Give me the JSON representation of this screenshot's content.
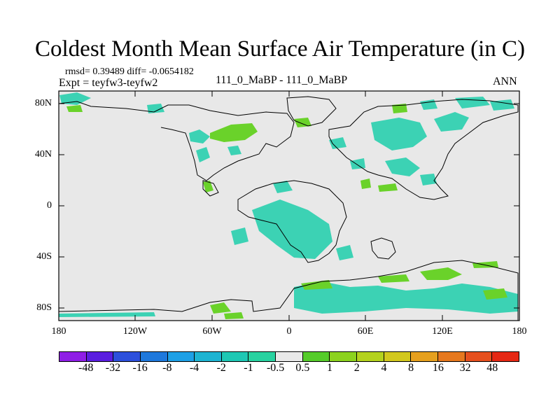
{
  "title": "Coldest Month Mean Surface Air Temperature (in C)",
  "stats_line": "rmsd= 0.39489  diff= -0.0654182",
  "expt_line": "Expt = teyfw3-teyfw2",
  "case_line": "111_0_MaBP - 111_0_MaBP",
  "season": "ANN",
  "axes": {
    "lat_ticks": [
      "80N",
      "40N",
      "0",
      "40S",
      "80S"
    ],
    "lon_ticks": [
      "180",
      "120W",
      "60W",
      "0",
      "60E",
      "120E",
      "180"
    ]
  },
  "colorbar": {
    "colors": [
      "#8f1ee6",
      "#5a1ee0",
      "#2d50dc",
      "#1e78dc",
      "#1ea0e6",
      "#1eb4d2",
      "#1ec8b4",
      "#28d2a0",
      "#e8e8e8",
      "#55cc2a",
      "#8cd21e",
      "#b4d21e",
      "#d2c81e",
      "#e6a01e",
      "#e6781e",
      "#e6501e",
      "#e62814"
    ],
    "labels": [
      "-48",
      "-32",
      "-16",
      "-8",
      "-4",
      "-2",
      "-1",
      "-0.5",
      "0.5",
      "1",
      "2",
      "4",
      "8",
      "16",
      "32",
      "48"
    ]
  },
  "map": {
    "ocean_color": "#e8e8e8",
    "positive_color": "#6ad22a",
    "negative_color": "#3cd2b4"
  }
}
